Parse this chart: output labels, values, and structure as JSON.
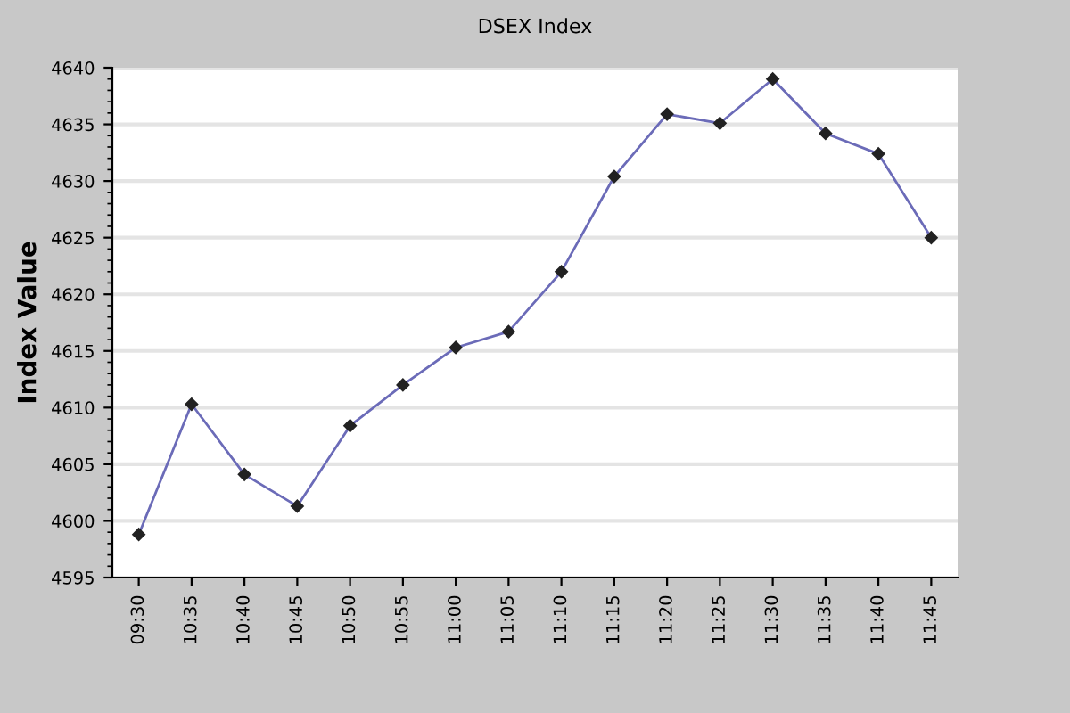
{
  "chart_data": {
    "type": "line",
    "title": "DSEX Index",
    "ylabel": "Index Value",
    "categories": [
      "09:30",
      "10:35",
      "10:40",
      "10:45",
      "10:50",
      "10:55",
      "11:00",
      "11:05",
      "11:10",
      "11:15",
      "11:20",
      "11:25",
      "11:30",
      "11:35",
      "11:40",
      "11:45"
    ],
    "series": [
      {
        "color": "#6b6bb8",
        "values": [
          4598.8,
          4610.3,
          4604.1,
          4601.3,
          4608.4,
          4612.0,
          4615.3,
          4616.7,
          4622.0,
          4630.4,
          4635.9,
          4635.1,
          4639.0,
          4634.2,
          4632.4,
          4625.0
        ]
      }
    ],
    "ylim": [
      4595,
      4640
    ],
    "yticks": [
      4595,
      4600,
      4605,
      4610,
      4615,
      4620,
      4625,
      4630,
      4635,
      4640
    ],
    "grid": "y",
    "marker": "diamond",
    "line_style": "solid"
  }
}
